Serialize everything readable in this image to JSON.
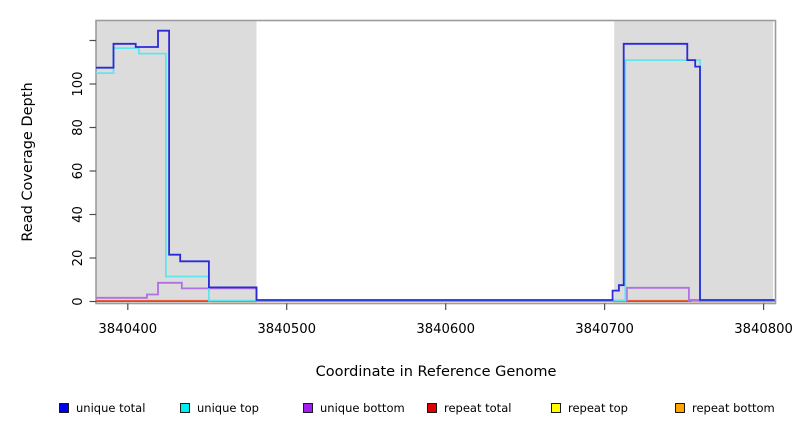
{
  "figure": {
    "xlabel": "Coordinate in Reference Genome",
    "ylabel": "Read Coverage Depth"
  },
  "chart_data": {
    "type": "line",
    "subtype": "step-coverage-plot",
    "title": "",
    "xlabel": "Coordinate in Reference Genome",
    "ylabel": "Read Coverage Depth",
    "xlim": [
      3840380,
      3840807
    ],
    "ylim": [
      0,
      129
    ],
    "grid": false,
    "legend_position": "bottom",
    "x_ticks": {
      "values": [
        3840400,
        3840500,
        3840600,
        3840700,
        3840800
      ],
      "labels": [
        "3840400",
        "3840500",
        "3840600",
        "3840700",
        "3840800"
      ]
    },
    "y_ticks": {
      "values": [
        0,
        20,
        40,
        60,
        80,
        100,
        120
      ],
      "labels": [
        "0",
        "20",
        "40",
        "60",
        "80",
        "100",
        ""
      ]
    },
    "shaded_regions": [
      {
        "x0": 3840380,
        "x1": 3840481,
        "color": "#dcdcdc"
      },
      {
        "x0": 3840706,
        "x1": 3840806,
        "color": "#dcdcdc"
      }
    ],
    "series": [
      {
        "name": "unique total",
        "color": "#2a2ad8",
        "legend_color": "#0000ee",
        "points": [
          [
            3840380,
            107.5
          ],
          [
            3840391,
            118.5
          ],
          [
            3840405,
            117
          ],
          [
            3840419,
            124.5
          ],
          [
            3840426,
            21.5
          ],
          [
            3840433,
            18.5
          ],
          [
            3840451,
            6.5
          ],
          [
            3840481,
            0.7
          ],
          [
            3840705,
            5
          ],
          [
            3840709,
            7.5
          ],
          [
            3840712,
            118.5
          ],
          [
            3840752,
            111
          ],
          [
            3840757,
            108
          ],
          [
            3840760,
            0.7
          ],
          [
            3840807,
            0.7
          ]
        ]
      },
      {
        "name": "unique top",
        "color": "#5fe6ec",
        "legend_color": "#00eeee",
        "points": [
          [
            3840380,
            105
          ],
          [
            3840391,
            116.5
          ],
          [
            3840407,
            114
          ],
          [
            3840424,
            11.5
          ],
          [
            3840451,
            0.4
          ],
          [
            3840713,
            111
          ],
          [
            3840760,
            0.4
          ],
          [
            3840807,
            0.4
          ]
        ]
      },
      {
        "name": "unique bottom",
        "color": "#b170e2",
        "legend_color": "#a020f0",
        "points": [
          [
            3840380,
            1.7
          ],
          [
            3840412,
            3.2
          ],
          [
            3840419,
            8.6
          ],
          [
            3840434,
            6
          ],
          [
            3840481,
            0.35
          ],
          [
            3840714,
            6.3
          ],
          [
            3840753,
            0.35
          ],
          [
            3840807,
            0.35
          ]
        ]
      },
      {
        "name": "repeat total",
        "color": "#e23b4b",
        "legend_color": "#dd0000",
        "points": [
          [
            3840380,
            0.2
          ],
          [
            3840754,
            0.6
          ],
          [
            3840760,
            0.2
          ],
          [
            3840807,
            0.2
          ]
        ]
      },
      {
        "name": "repeat top",
        "color": "#f5f500",
        "legend_color": "#ffff00",
        "points": [
          [
            3840380,
            0.2
          ],
          [
            3840807,
            0.2
          ]
        ]
      },
      {
        "name": "repeat bottom",
        "color": "#ff9f1a",
        "legend_color": "#ffa500",
        "points": [
          [
            3840380,
            0.3
          ],
          [
            3840453,
            0.15
          ],
          [
            3840714,
            0.3
          ],
          [
            3840754,
            0.15
          ],
          [
            3840807,
            0.15
          ]
        ]
      }
    ]
  }
}
